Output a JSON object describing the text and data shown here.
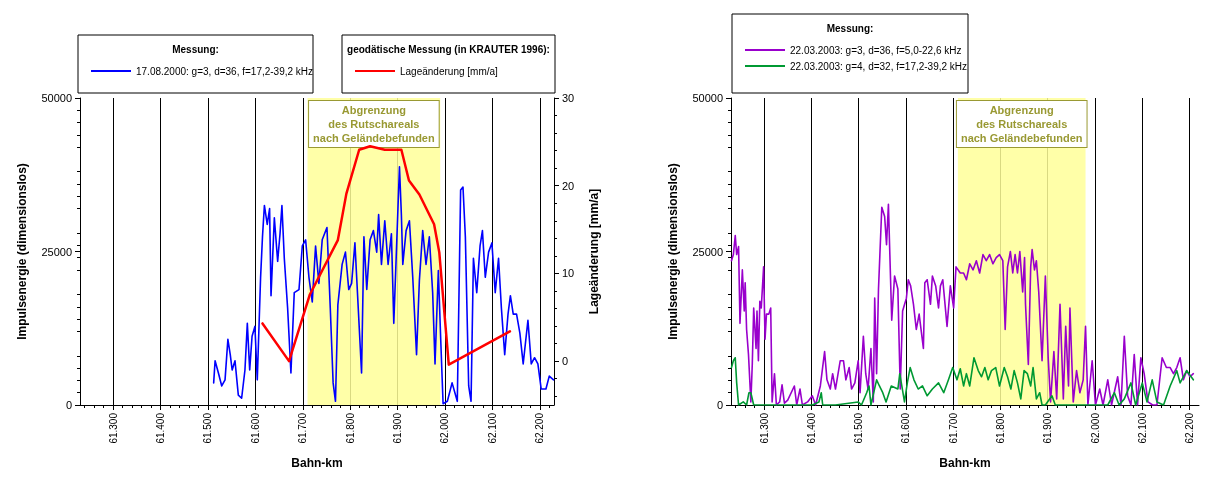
{
  "chart_data": [
    {
      "type": "line",
      "xlabel": "Bahn-km",
      "ylabel": "Impulsenergie (dimensionslos)",
      "y2label": "Lageänderung [mm/a]",
      "legend_title": [
        "Messung:",
        "geodätische Messung (in KRAUTER 1996):"
      ],
      "legend": "top",
      "grid": "x",
      "marker": "none",
      "line_style": "solid",
      "xlim": [
        61230,
        62230
      ],
      "xticks": [
        {
          "value": 61300,
          "label": "61.300"
        },
        {
          "value": 61400,
          "label": "61.400"
        },
        {
          "value": 61500,
          "label": "61.500"
        },
        {
          "value": 61600,
          "label": "61.600"
        },
        {
          "value": 61700,
          "label": "61.700"
        },
        {
          "value": 61800,
          "label": "61.800"
        },
        {
          "value": 61900,
          "label": "61.900"
        },
        {
          "value": 62000,
          "label": "62.000"
        },
        {
          "value": 62100,
          "label": "62.100"
        },
        {
          "value": 62200,
          "label": "62.200"
        }
      ],
      "ylim": [
        0,
        50000
      ],
      "yticks": [
        0,
        25000,
        50000
      ],
      "y2lim": [
        -5,
        30
      ],
      "y2ticks": [
        0,
        10,
        20,
        30
      ],
      "bands": [
        {
          "axis": "x",
          "from": 61710,
          "to": 61990,
          "label": "Abgrenzung\ndes Rutschareals\nnach Geländebefunden",
          "color": "#ffff99"
        }
      ],
      "series": [
        {
          "name": "17.08.2000: g=3, d=36, f=17,2-39,2 kHz",
          "color": "#0000ff",
          "x": [
            61512,
            61515,
            61522,
            61529,
            61536,
            61542,
            61547,
            61551,
            61557,
            61564,
            61571,
            61578,
            61583,
            61588,
            61593,
            61599,
            61604,
            61611,
            61615,
            61619,
            61625,
            61630,
            61633,
            61640,
            61647,
            61652,
            61656,
            61661,
            61668,
            61675,
            61682,
            61692,
            61699,
            61706,
            61713,
            61720,
            61727,
            61734,
            61741,
            61751,
            61758,
            61764,
            61769,
            61774,
            61783,
            61790,
            61797,
            61803,
            61810,
            61817,
            61824,
            61829,
            61835,
            61842,
            61849,
            61856,
            61860,
            61866,
            61873,
            61880,
            61887,
            61892,
            61897,
            61901,
            61904,
            61908,
            61911,
            61918,
            61925,
            61932,
            61940,
            61946,
            61953,
            61960,
            61967,
            61974,
            61979,
            61986,
            61991,
            61996,
            62005,
            62015,
            62026,
            62033,
            62038,
            62043,
            62050,
            62055,
            62060,
            62067,
            62074,
            62079,
            62085,
            62092,
            62099,
            62106,
            62113,
            62119,
            62126,
            62133,
            62138,
            62144,
            62151,
            62158,
            62165,
            62175,
            62182,
            62189,
            62196,
            62203,
            62213,
            62220,
            62229
          ],
          "values": [
            3600,
            7200,
            5200,
            3100,
            4100,
            10700,
            8200,
            5700,
            7200,
            1600,
            1100,
            5700,
            13300,
            5700,
            11200,
            12800,
            4100,
            20800,
            27400,
            32500,
            29400,
            32000,
            17800,
            30500,
            23400,
            27900,
            32500,
            23900,
            15800,
            5200,
            18300,
            18800,
            25900,
            26900,
            20800,
            16800,
            25900,
            19800,
            26900,
            28900,
            15800,
            3600,
            600,
            16300,
            22900,
            24900,
            18800,
            19800,
            26400,
            15800,
            5200,
            27400,
            18800,
            26900,
            28400,
            24900,
            31000,
            22900,
            30000,
            22900,
            27900,
            13300,
            23900,
            32500,
            38800,
            31000,
            22900,
            28400,
            30000,
            20800,
            8200,
            20300,
            28400,
            22900,
            27400,
            18300,
            6700,
            21900,
            10700,
            200,
            600,
            3600,
            600,
            35000,
            35500,
            27400,
            3100,
            600,
            23900,
            18300,
            25900,
            28400,
            20800,
            24900,
            26400,
            18300,
            23900,
            15800,
            8200,
            14800,
            17800,
            14800,
            14800,
            11700,
            6700,
            13800,
            6700,
            7700,
            6700,
            2600,
            2600,
            4700,
            4100
          ]
        },
        {
          "name": "Lageänderung [mm/a]",
          "color": "#ff0000",
          "axis": "y2",
          "x": [
            61615,
            61671,
            61715,
            61774,
            61792,
            61819,
            61842,
            61873,
            61908,
            61924,
            61946,
            61977,
            61988,
            62008,
            62137
          ],
          "values": [
            4.3,
            0,
            7.6,
            13.8,
            19.1,
            24.1,
            24.5,
            24.1,
            24.1,
            20.6,
            19.0,
            15.6,
            12.4,
            -0.4,
            3.4
          ]
        }
      ]
    },
    {
      "type": "line",
      "xlabel": "Bahn-km",
      "ylabel": "Impulsenergie (dimensionslos)",
      "legend_title": "Messung:",
      "legend": "top",
      "grid": "x",
      "marker": "none",
      "line_style": "solid",
      "xlim": [
        61230,
        62220
      ],
      "xticks": [
        {
          "value": 61300,
          "label": "61.300"
        },
        {
          "value": 61400,
          "label": "61.400"
        },
        {
          "value": 61500,
          "label": "61.500"
        },
        {
          "value": 61600,
          "label": "61.600"
        },
        {
          "value": 61700,
          "label": "61.700"
        },
        {
          "value": 61800,
          "label": "61.800"
        },
        {
          "value": 61900,
          "label": "61.900"
        },
        {
          "value": 62000,
          "label": "62.000"
        },
        {
          "value": 62100,
          "label": "62.100"
        },
        {
          "value": 62200,
          "label": "62.200"
        }
      ],
      "ylim": [
        0,
        50000
      ],
      "yticks": [
        0,
        25000,
        50000
      ],
      "bands": [
        {
          "axis": "x",
          "from": 61710,
          "to": 61980,
          "label": "Abgrenzung\ndes Rutschareals\nnach Geländebefunden",
          "color": "#ffff99"
        }
      ],
      "series": [
        {
          "name": "22.03.2003: g=3, d=36, f=5,0-22,6 kHz",
          "color": "#9900cc",
          "x": [
            61231,
            61235,
            61239,
            61242,
            61246,
            61249,
            61254,
            61258,
            61260,
            61263,
            61267,
            61272,
            61275,
            61278,
            61283,
            61285,
            61288,
            61291,
            61294,
            61299,
            61302,
            61305,
            61310,
            61314,
            61317,
            61322,
            61326,
            61333,
            61338,
            61343,
            61350,
            61364,
            61369,
            61376,
            61381,
            61392,
            61402,
            61409,
            61419,
            61428,
            61433,
            61440,
            61445,
            61451,
            61461,
            61468,
            61473,
            61480,
            61485,
            61492,
            61499,
            61503,
            61510,
            61515,
            61520,
            61526,
            61531,
            61534,
            61538,
            61542,
            61549,
            61555,
            61559,
            61563,
            61570,
            61576,
            61583,
            61588,
            61593,
            61601,
            61605,
            61610,
            61616,
            61622,
            61628,
            61637,
            61640,
            61645,
            61652,
            61656,
            61663,
            61669,
            61673,
            61678,
            61687,
            61694,
            61701,
            61706,
            61715,
            61722,
            61728,
            61735,
            61742,
            61749,
            61756,
            61763,
            61770,
            61777,
            61784,
            61791,
            61798,
            61805,
            61810,
            61815,
            61821,
            61826,
            61831,
            61836,
            61841,
            61847,
            61851,
            61853,
            61859,
            61864,
            61867,
            61872,
            61876,
            61881,
            61888,
            61895,
            61901,
            61906,
            61913,
            61919,
            61926,
            61933,
            61938,
            61944,
            61947,
            61954,
            61961,
            61968,
            61975,
            61980,
            61985,
            61994,
            62001,
            62010,
            62017,
            62027,
            62035,
            62048,
            62055,
            62062,
            62069,
            62076,
            62083,
            62090,
            62097,
            62104,
            62112,
            62122,
            62131,
            62142,
            62151,
            62159,
            62166,
            62173,
            62180,
            62187,
            62194,
            62201,
            62208
          ],
          "values": [
            23500,
            24500,
            27600,
            24500,
            25800,
            13300,
            22000,
            15300,
            19900,
            12300,
            8200,
            500,
            6600,
            15800,
            9200,
            15300,
            7200,
            16900,
            15800,
            22500,
            10700,
            14800,
            14800,
            15800,
            500,
            5100,
            0,
            500,
            3300,
            300,
            800,
            3100,
            0,
            2600,
            0,
            500,
            1500,
            0,
            3100,
            8700,
            4100,
            2600,
            5100,
            2600,
            7200,
            7200,
            4100,
            6100,
            2600,
            3600,
            7200,
            2000,
            11200,
            5100,
            2600,
            9200,
            500,
            17400,
            5100,
            18900,
            32200,
            30700,
            26100,
            32700,
            13800,
            21000,
            18900,
            2600,
            15300,
            17400,
            20400,
            19400,
            16400,
            12300,
            14800,
            9200,
            19900,
            20400,
            16400,
            21000,
            19400,
            15800,
            19400,
            20400,
            12800,
            19400,
            15800,
            22500,
            21500,
            21500,
            20400,
            23000,
            22000,
            23500,
            21500,
            24500,
            23500,
            24500,
            23000,
            24000,
            24500,
            23500,
            12300,
            22500,
            25000,
            21500,
            24500,
            21500,
            25000,
            18400,
            24000,
            16400,
            6600,
            22500,
            25300,
            22000,
            23500,
            18400,
            7200,
            21000,
            7700,
            500,
            8700,
            1000,
            16400,
            1000,
            12800,
            3100,
            15800,
            500,
            5600,
            2000,
            4100,
            12800,
            0,
            7200,
            0,
            2600,
            0,
            4100,
            0,
            4600,
            0,
            11200,
            1500,
            0,
            8200,
            0,
            7700,
            5100,
            500,
            0,
            0,
            7700,
            6100,
            6100,
            5100,
            6100,
            7700,
            4100,
            5600,
            4600,
            5100
          ]
        },
        {
          "name": "22.03.2003: g=4, d=32, f=17,2-39,2 kHz",
          "color": "#009933",
          "x": [
            61231,
            61235,
            61239,
            61242,
            61246,
            61256,
            61263,
            61268,
            61272,
            61278,
            61305,
            61402,
            61416,
            61421,
            61424,
            61451,
            61499,
            61506,
            61517,
            61522,
            61526,
            61538,
            61544,
            61551,
            61558,
            61569,
            61583,
            61587,
            61597,
            61603,
            61609,
            61617,
            61626,
            61635,
            61645,
            61656,
            61669,
            61680,
            61690,
            61699,
            61708,
            61715,
            61722,
            61728,
            61735,
            61744,
            61753,
            61760,
            61767,
            61774,
            61781,
            61790,
            61798,
            61808,
            61815,
            61822,
            61829,
            61836,
            61843,
            61850,
            61857,
            61864,
            61869,
            61876,
            61883,
            61888,
            61895,
            61909,
            61916,
            61958,
            62027,
            62041,
            62051,
            62062,
            62076,
            62086,
            62100,
            62110,
            62121,
            62131,
            62145,
            62159,
            62173,
            62180,
            62194,
            62208
          ],
          "values": [
            6100,
            7200,
            7700,
            3600,
            0,
            500,
            0,
            2000,
            2000,
            0,
            0,
            0,
            500,
            2000,
            0,
            0,
            500,
            0,
            2000,
            3100,
            0,
            4100,
            3100,
            2000,
            500,
            3100,
            2600,
            5100,
            500,
            3600,
            6100,
            4100,
            2600,
            3100,
            1500,
            2600,
            3600,
            2000,
            4100,
            6100,
            4100,
            5900,
            3100,
            5100,
            3100,
            7700,
            5600,
            4600,
            6100,
            4100,
            5600,
            6100,
            3100,
            6100,
            4600,
            2600,
            5600,
            3600,
            1000,
            5600,
            5100,
            3100,
            6100,
            1000,
            2000,
            0,
            0,
            1500,
            0,
            0,
            0,
            2000,
            0,
            1000,
            3600,
            0,
            3600,
            500,
            4100,
            500,
            0,
            3100,
            5600,
            3600,
            5600,
            4100
          ]
        }
      ]
    }
  ]
}
